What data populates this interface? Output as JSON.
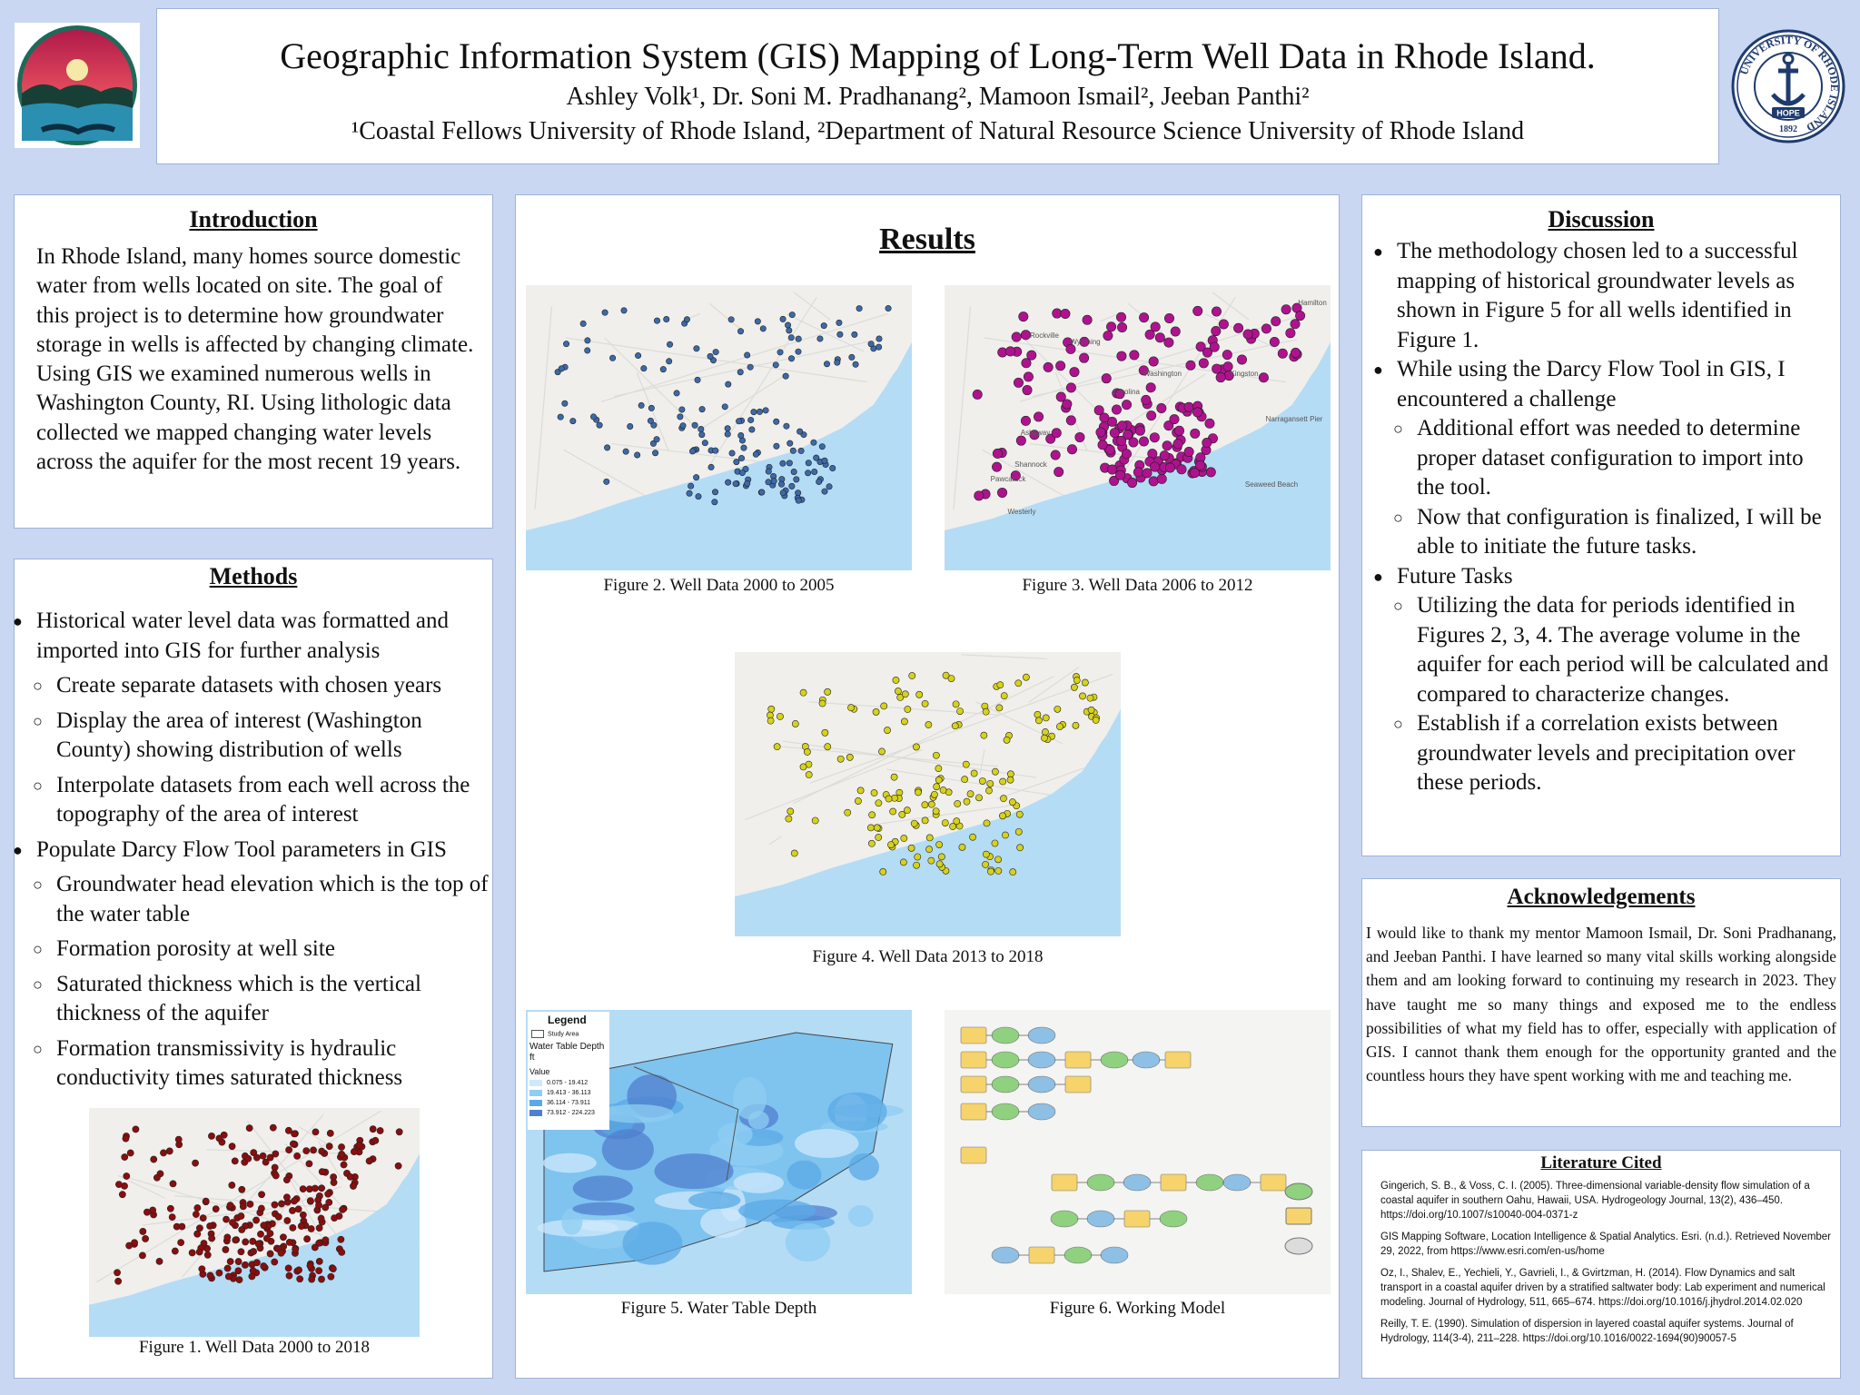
{
  "header": {
    "title": "Geographic Information System (GIS) Mapping of Long-Term Well Data in Rhode Island.",
    "authors": "Ashley Volk¹, Dr. Soni M. Pradhanang², Mamoon Ismail², Jeeban Panthi²",
    "affiliations": "¹Coastal Fellows University of Rhode Island, ²Department of Natural Resource Science University of Rhode Island"
  },
  "logos": {
    "right_ring_text": "UNIVERSITY OF RHODE ISLAND",
    "right_banner": "HOPE",
    "right_year": "1892"
  },
  "introduction": {
    "heading": "Introduction",
    "text": "In Rhode Island, many homes source domestic water from wells located on site. The goal of this project is to determine how groundwater storage in wells is affected by changing climate. Using GIS we examined numerous wells in Washington County, RI. Using lithologic data collected we mapped changing water levels across the aquifer for the most recent 19 years."
  },
  "methods": {
    "heading": "Methods",
    "items": [
      {
        "level": 1,
        "text": "Historical water level data was formatted and imported into GIS for further analysis"
      },
      {
        "level": 2,
        "text": "Create separate datasets with chosen years"
      },
      {
        "level": 2,
        "text": "Display the area of interest (Washington County) showing distribution of wells"
      },
      {
        "level": 2,
        "text": "Interpolate datasets from each well across the topography of the area of interest"
      },
      {
        "level": 1,
        "text": "Populate Darcy Flow Tool parameters in GIS"
      },
      {
        "level": 2,
        "text": "Groundwater head elevation which is the top of the water table"
      },
      {
        "level": 2,
        "text": "Formation porosity at well site"
      },
      {
        "level": 2,
        "text": "Saturated thickness which is the vertical thickness of the aquifer"
      },
      {
        "level": 2,
        "text": "Formation transmissivity is hydraulic conductivity times saturated thickness"
      }
    ],
    "figure1_caption": "Figure 1. Well Data 2000 to 2018"
  },
  "results": {
    "heading": "Results",
    "fig2_caption": "Figure 2.  Well Data 2000 to 2005",
    "fig3_caption": "Figure 3. Well Data 2006 to 2012",
    "fig4_caption": "Figure 4. Well Data 2013 to 2018",
    "fig5_caption": "Figure 5. Water Table Depth",
    "fig6_caption": "Figure 6. Working Model",
    "fig3_labels": [
      "Hamilton",
      "Rockville",
      "Wyoming",
      "Washington",
      "Kingston",
      "Carolina",
      "Narragansett Pier",
      "Ashaway",
      "Shannock",
      "Seaweed Beach",
      "Pawcatuck",
      "Westerly"
    ],
    "legend": {
      "title": "Legend",
      "study_area": "Study Area",
      "field": "Water Table Depth",
      "unit": "ft",
      "value_label": "Value",
      "ranges": [
        "0.075 - 19.412",
        "19.413 - 36.113",
        "36.114 - 73.911",
        "73.912 - 224.223"
      ],
      "colors": [
        "#cfe8fb",
        "#8fcdf2",
        "#5aa9e6",
        "#4f7fcf"
      ]
    }
  },
  "discussion": {
    "heading": "Discussion",
    "items": [
      {
        "level": 1,
        "text": "The methodology chosen led to a successful mapping of historical groundwater levels as shown in Figure 5 for all wells identified in Figure 1."
      },
      {
        "level": 1,
        "text": "While using the Darcy Flow Tool in GIS, I encountered a challenge"
      },
      {
        "level": 2,
        "text": "Additional effort was needed to determine proper dataset configuration to import into the tool."
      },
      {
        "level": 2,
        "text": "Now that configuration is finalized, I will be able to initiate the future tasks."
      },
      {
        "level": 1,
        "text": "Future Tasks"
      },
      {
        "level": 2,
        "text": "Utilizing the data for periods identified in Figures 2, 3, 4. The average volume in the aquifer for each period will be calculated and compared to characterize changes."
      },
      {
        "level": 2,
        "text": "Establish if a correlation exists between groundwater levels and precipitation over these periods."
      }
    ]
  },
  "acknowledgements": {
    "heading": "Acknowledgements",
    "text": "I would like to thank my mentor Mamoon Ismail, Dr. Soni Pradhanang, and Jeeban Panthi. I have learned so many vital skills working alongside them and am looking forward to continuing my research in 2023. They have taught me so many things and exposed me to the endless possibilities of what my field has to offer, especially with application of GIS. I cannot thank them enough for the opportunity granted and the countless hours they have spent working with me and teaching me."
  },
  "literature": {
    "heading": "Literature Cited",
    "refs": [
      "Gingerich, S. B., & Voss, C. I. (2005). Three-dimensional variable-density flow simulation of a coastal aquifer in southern Oahu, Hawaii, USA. Hydrogeology Journal, 13(2), 436–450. https://doi.org/10.1007/s10040-004-0371-z",
      "GIS Mapping Software, Location Intelligence & Spatial Analytics. Esri. (n.d.). Retrieved November 29, 2022, from https://www.esri.com/en-us/home",
      "Oz, I., Shalev, E., Yechieli, Y., Gavrieli, I., & Gvirtzman, H. (2014). Flow Dynamics and salt transport in a coastal aquifer driven by a stratified saltwater body: Lab experiment and numerical modeling. Journal of Hydrology, 511, 665–674. https://doi.org/10.1016/j.jhydrol.2014.02.020",
      "Reilly, T. E. (1990). Simulation of dispersion in layered coastal aquifer systems. Journal of Hydrology, 114(3-4), 211–228. https://doi.org/10.1016/0022-1694(90)90057-5"
    ]
  },
  "colors": {
    "fig1_dots": "#8b0d0d",
    "fig2_dots": "#3c6aa8",
    "fig3_dots": "#b0128f",
    "fig4_dots": "#d6d21a",
    "water": "#b5dcf5",
    "land": "#f0efec"
  }
}
